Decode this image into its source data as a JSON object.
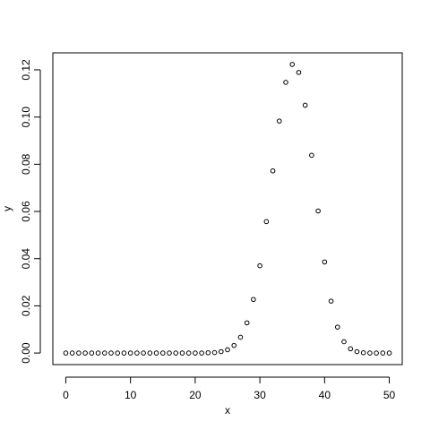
{
  "chart_data": {
    "type": "scatter",
    "x_label": "x",
    "y_label": "y",
    "x": [
      0,
      1,
      2,
      3,
      4,
      5,
      6,
      7,
      8,
      9,
      10,
      11,
      12,
      13,
      14,
      15,
      16,
      17,
      18,
      19,
      20,
      21,
      22,
      23,
      24,
      25,
      26,
      27,
      28,
      29,
      30,
      31,
      32,
      33,
      34,
      35,
      36,
      37,
      38,
      39,
      40,
      41,
      42,
      43,
      44,
      45,
      46,
      47,
      48,
      49,
      50
    ],
    "y": [
      0,
      0,
      0,
      0,
      0,
      0,
      0,
      0,
      0,
      0,
      0,
      0,
      0,
      0,
      0,
      0,
      0,
      0,
      0,
      0,
      0,
      0,
      0.0001,
      0.0002,
      0.0006,
      0.0014,
      0.0032,
      0.0067,
      0.0128,
      0.0227,
      0.037,
      0.0557,
      0.0772,
      0.0983,
      0.1147,
      0.1223,
      0.1189,
      0.105,
      0.0838,
      0.0602,
      0.0386,
      0.022,
      0.011,
      0.0048,
      0.0018,
      0.0006,
      0.0001,
      0,
      0,
      0,
      0
    ],
    "color": "#000000",
    "xlim": [
      -2,
      52
    ],
    "ylim": [
      -0.0049,
      0.1272
    ],
    "xticks": [
      0,
      10,
      20,
      30,
      40,
      50
    ],
    "yticks": [
      {
        "value": 0,
        "label": "0.00"
      },
      {
        "value": 0.02,
        "label": "0.02"
      },
      {
        "value": 0.04,
        "label": "0.04"
      },
      {
        "value": 0.06,
        "label": "0.06"
      },
      {
        "value": 0.08,
        "label": "0.08"
      },
      {
        "value": 0.1,
        "label": "0.10"
      },
      {
        "value": 0.12,
        "label": "0.12"
      }
    ]
  }
}
